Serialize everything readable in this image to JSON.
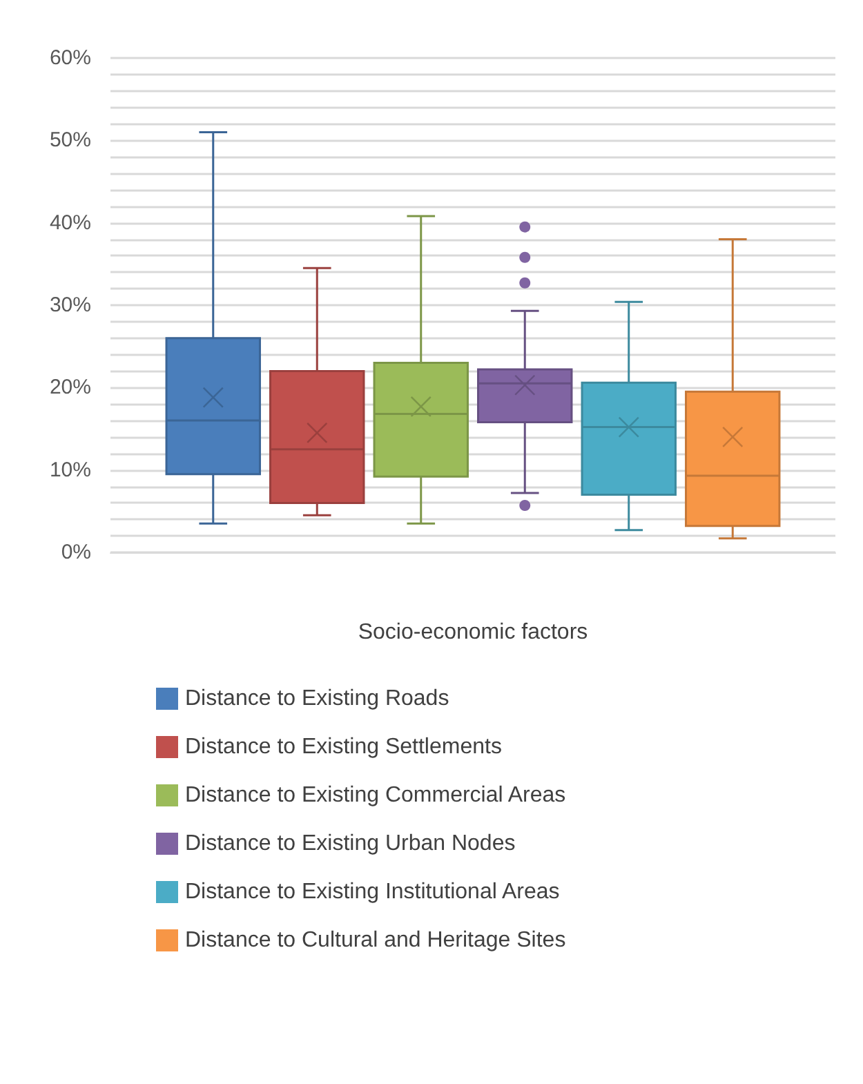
{
  "chart_data": {
    "type": "box",
    "xlabel": "Socio-economic factors",
    "categories": [
      null
    ],
    "ylim": [
      0,
      60
    ],
    "yticks": [
      {
        "value": 0,
        "label": "0%"
      },
      {
        "value": 2,
        "label": null
      },
      {
        "value": 4,
        "label": null
      },
      {
        "value": 6,
        "label": null
      },
      {
        "value": 8,
        "label": null
      },
      {
        "value": 10,
        "label": "10%"
      },
      {
        "value": 12,
        "label": null
      },
      {
        "value": 14,
        "label": null
      },
      {
        "value": 16,
        "label": null
      },
      {
        "value": 18,
        "label": null
      },
      {
        "value": 20,
        "label": "20%"
      },
      {
        "value": 22,
        "label": null
      },
      {
        "value": 24,
        "label": null
      },
      {
        "value": 26,
        "label": null
      },
      {
        "value": 28,
        "label": null
      },
      {
        "value": 30,
        "label": "30%"
      },
      {
        "value": 32,
        "label": null
      },
      {
        "value": 34,
        "label": null
      },
      {
        "value": 36,
        "label": null
      },
      {
        "value": 38,
        "label": null
      },
      {
        "value": 40,
        "label": "40%"
      },
      {
        "value": 42,
        "label": null
      },
      {
        "value": 44,
        "label": null
      },
      {
        "value": 46,
        "label": null
      },
      {
        "value": 48,
        "label": null
      },
      {
        "value": 50,
        "label": "50%"
      },
      {
        "value": 52,
        "label": null
      },
      {
        "value": 54,
        "label": null
      },
      {
        "value": 56,
        "label": null
      },
      {
        "value": 58,
        "label": null
      },
      {
        "value": 60,
        "label": "60%"
      }
    ],
    "grid": "y",
    "legend": "bottom",
    "series": [
      {
        "name": "Distance to Existing Roads",
        "color": "#4a7ebb",
        "boxes": [
          {
            "low": 3.5,
            "q1": 9.5,
            "median": 16,
            "q3": 26,
            "high": 51,
            "mean": 18.8
          }
        ]
      },
      {
        "name": "Distance to Existing Settlements",
        "color": "#c0504d",
        "boxes": [
          {
            "low": 4.5,
            "q1": 6,
            "median": 12.5,
            "q3": 22,
            "high": 34.5,
            "mean": 14.5
          }
        ]
      },
      {
        "name": "Distance to Existing Commercial Areas",
        "color": "#9bbb59",
        "boxes": [
          {
            "low": 3.5,
            "q1": 9.2,
            "median": 16.8,
            "q3": 23,
            "high": 40.8,
            "mean": 17.7
          }
        ]
      },
      {
        "name": "Distance to Existing Urban Nodes",
        "color": "#8064a2",
        "boxes": [
          {
            "low": 7.2,
            "q1": 15.8,
            "median": 20.5,
            "q3": 22.2,
            "high": 29.3,
            "mean": 20.3,
            "outliers": [
              39.5,
              35.8,
              32.7,
              5.7
            ]
          }
        ]
      },
      {
        "name": "Distance to Existing Institutional Areas",
        "color": "#4bacc6",
        "boxes": [
          {
            "low": 2.7,
            "q1": 7,
            "median": 15.2,
            "q3": 20.6,
            "high": 30.4,
            "mean": 15.2
          }
        ]
      },
      {
        "name": "Distance to Cultural and Heritage Sites",
        "color": "#f79646",
        "boxes": [
          {
            "low": 1.7,
            "q1": 3.2,
            "median": 9.3,
            "q3": 19.5,
            "high": 38,
            "mean": 14
          }
        ]
      }
    ]
  }
}
